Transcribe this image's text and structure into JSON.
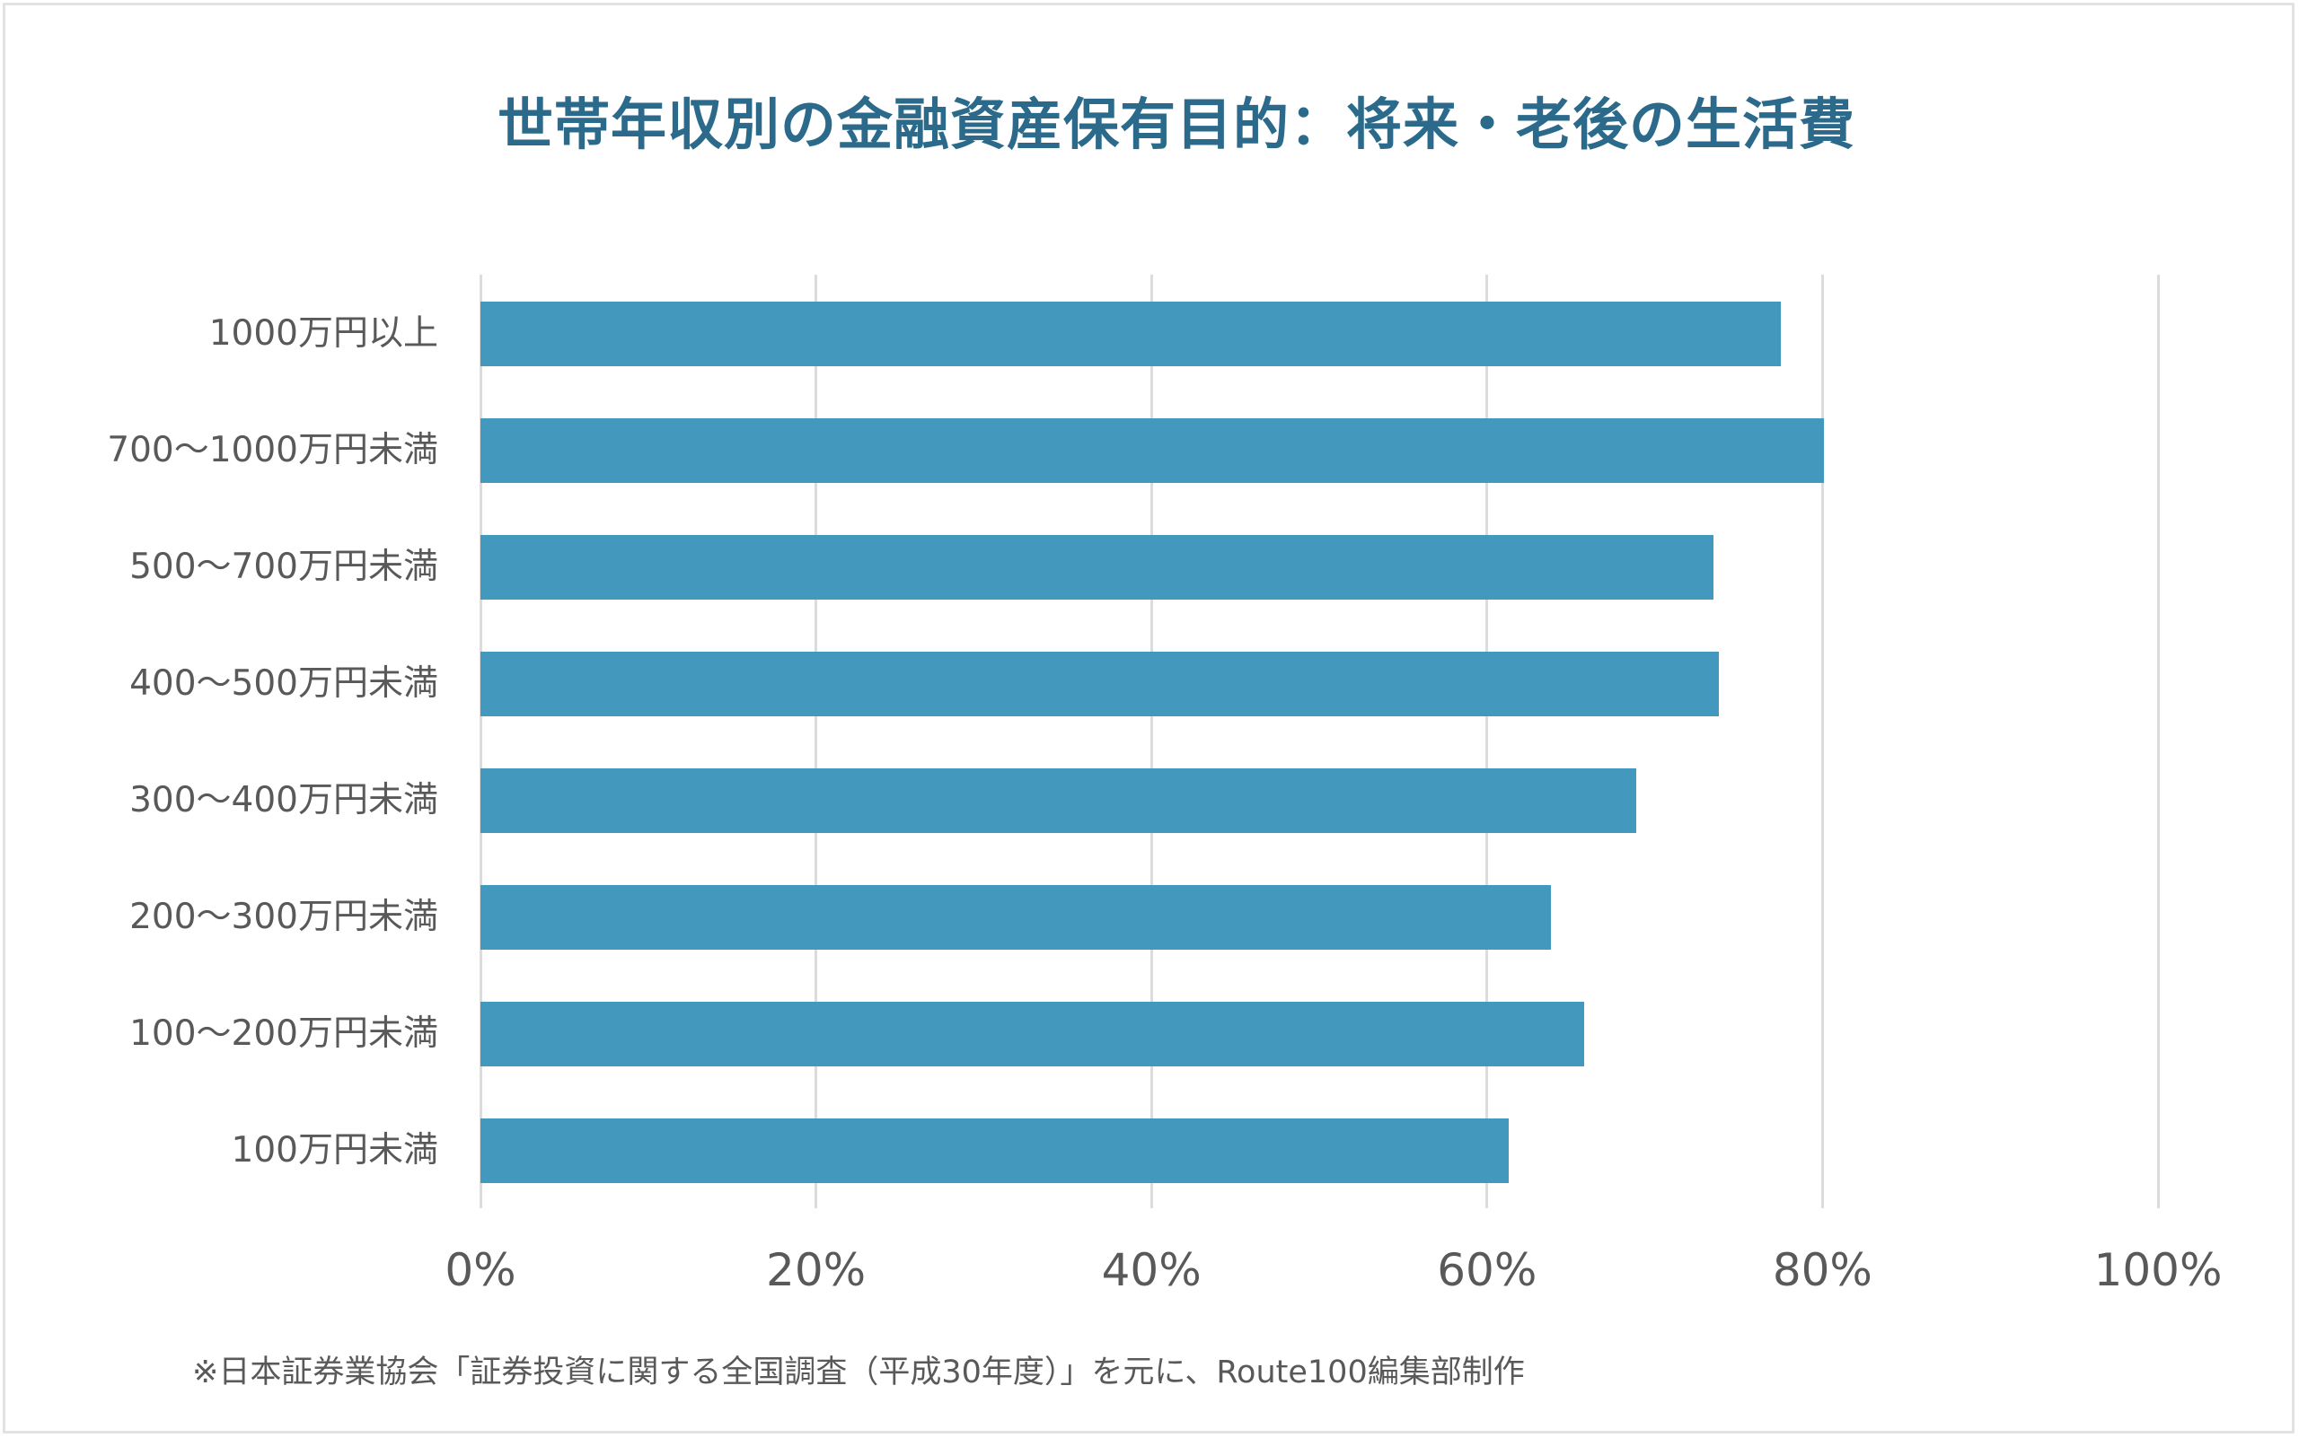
{
  "title": "世帯年収別の金融資産保有目的：将来・老後の生活費",
  "footnote": "※日本証券業協会「証券投資に関する全国調査（平成30年度）」を元に、Route100編集部制作",
  "colors": {
    "title": "#2b6a8a",
    "bar": "#4298bd",
    "gridline": "#dcdcdc",
    "text": "#595959"
  },
  "x_ticks": [
    "0%",
    "20%",
    "40%",
    "60%",
    "80%",
    "100%"
  ],
  "categories": [
    "1000万円以上",
    "700～1000万円未満",
    "500～700万円未満",
    "400～500万円未満",
    "300～400万円未満",
    "200～300万円未満",
    "100～200万円未満",
    "100万円未満"
  ],
  "chart_data": {
    "type": "bar",
    "orientation": "horizontal",
    "title": "世帯年収別の金融資産保有目的：将来・老後の生活費",
    "xlabel": "",
    "ylabel": "",
    "categories": [
      "1000万円以上",
      "700～1000万円未満",
      "500～700万円未満",
      "400～500万円未満",
      "300～400万円未満",
      "200～300万円未満",
      "100～200万円未満",
      "100万円未満"
    ],
    "values": [
      77.5,
      80.1,
      73.5,
      73.8,
      68.9,
      63.8,
      65.8,
      61.3
    ],
    "unit": "%",
    "xlim": [
      0,
      100
    ],
    "x_ticks": [
      "0%",
      "20%",
      "40%",
      "60%",
      "80%",
      "100%"
    ],
    "grid": "vertical",
    "legend": "none",
    "annotation": "※日本証券業協会「証券投資に関する全国調査（平成30年度）」を元に、Route100編集部制作"
  }
}
